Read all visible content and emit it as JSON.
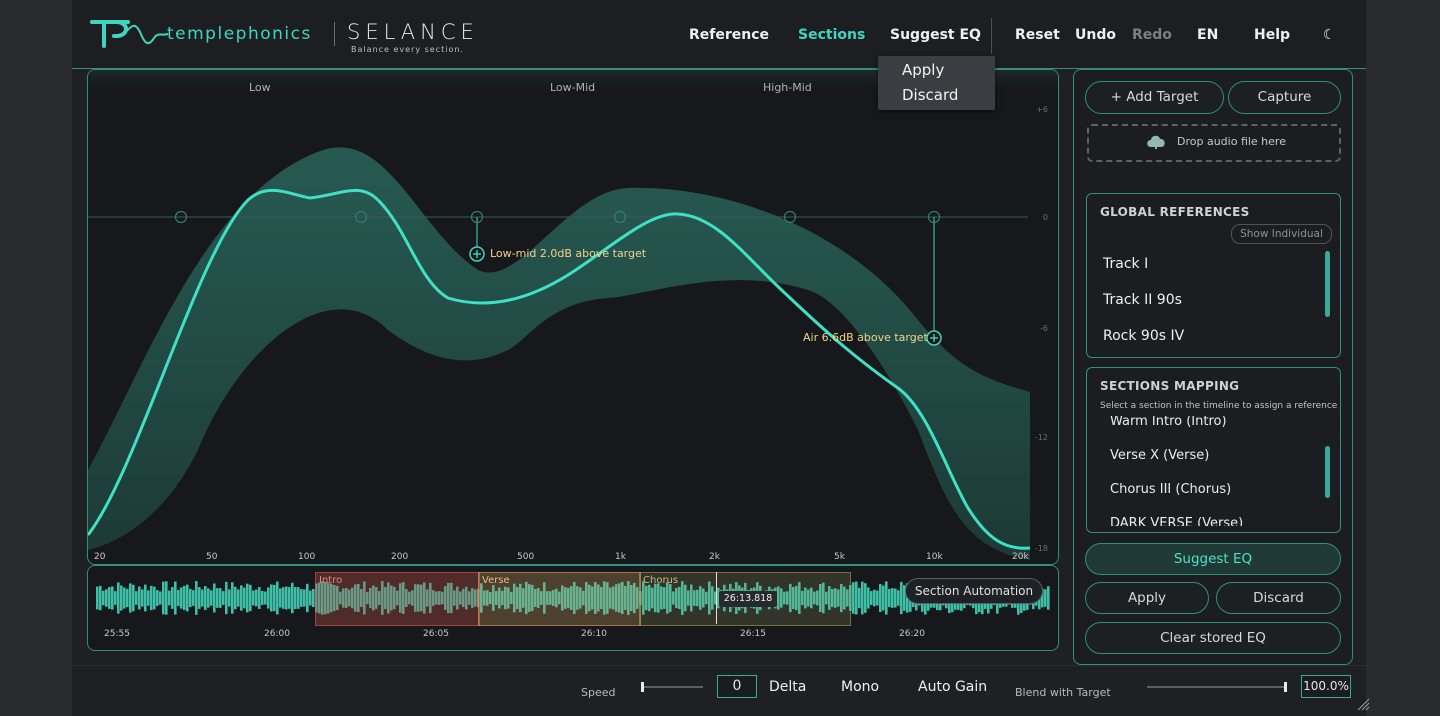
{
  "header": {
    "brand": "templephonics",
    "product": "SELANCE",
    "tagline": "Balance every section.",
    "nav": [
      "Reference",
      "Sections",
      "Suggest EQ",
      "Reset",
      "Undo",
      "Redo",
      "EN",
      "Help"
    ],
    "active_nav": "Sections",
    "disabled_nav": "Redo",
    "theme_icon": "moon-icon"
  },
  "dropdown": {
    "items": [
      "Apply",
      "Discard"
    ]
  },
  "eq": {
    "bands": [
      "Low",
      "Low-Mid",
      "High-Mid"
    ],
    "db_ticks": [
      "+6",
      "0",
      "-6",
      "-12",
      "-18"
    ],
    "freq_ticks": [
      "20",
      "50",
      "100",
      "200",
      "500",
      "1k",
      "2k",
      "5k",
      "10k",
      "20k"
    ],
    "annotations": [
      "Low-mid 2.0dB above target",
      "Air 6.6dB above target"
    ]
  },
  "timeline": {
    "sections": [
      "Intro",
      "Verse",
      "Chorus"
    ],
    "time_ticks": [
      "25:55",
      "26:00",
      "26:05",
      "26:10",
      "26:15",
      "26:20"
    ],
    "playhead_time": "26:13.818",
    "automation_label": "Section Automation"
  },
  "sidebar": {
    "add_target": "+ Add Target",
    "capture": "Capture",
    "drop_text": "Drop audio file here",
    "global_refs_title": "GLOBAL REFERENCES",
    "show_individual": "Show Individual",
    "tracks": [
      "Track I",
      "Track II 90s",
      "Rock 90s IV"
    ],
    "mapping_title": "SECTIONS MAPPING",
    "mapping_hint": "Select a section in the timeline to assign a reference",
    "mappings": [
      "Warm Intro (Intro)",
      "Verse X (Verse)",
      "Chorus III (Chorus)",
      "DARK VERSE (Verse)"
    ],
    "suggest_eq": "Suggest EQ",
    "apply": "Apply",
    "discard": "Discard",
    "clear_eq": "Clear stored EQ"
  },
  "footer": {
    "speed_label": "Speed",
    "delta_value": "0",
    "delta": "Delta",
    "mono": "Mono",
    "auto_gain": "Auto Gain",
    "blend_label": "Blend with Target",
    "blend_value": "100.0%"
  },
  "colors": {
    "accent": "#3fd6bf",
    "panel_border": "#2f8f80",
    "annotation": "#f1d48a"
  }
}
